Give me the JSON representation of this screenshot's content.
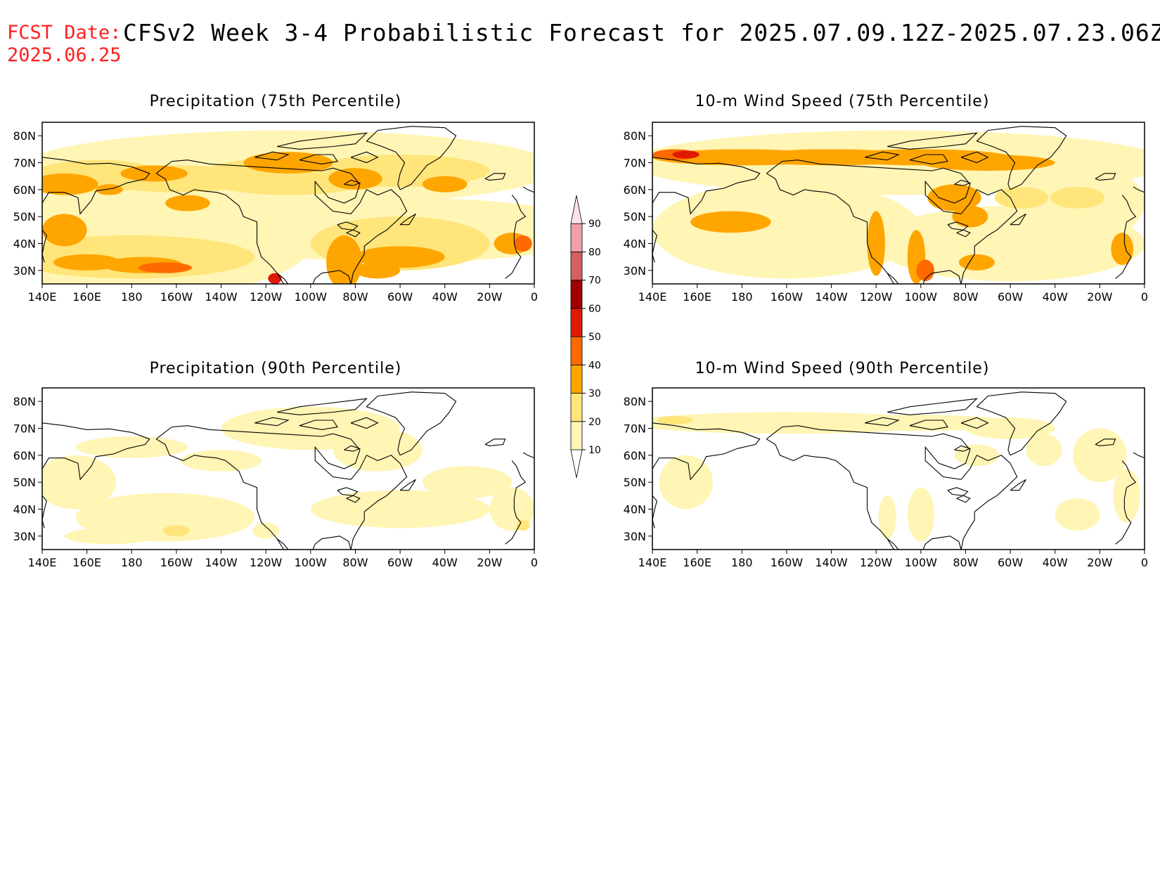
{
  "header": {
    "fcst_label": "FCST Date:",
    "fcst_date": "2025.06.25",
    "title": "CFSv2 Week 3-4 Probabilistic Forecast for 2025.07.09.12Z-2025.07.23.06Z"
  },
  "panels": [
    {
      "title": "Precipitation (75th Percentile)",
      "variable": "precipitation",
      "percentile": 75
    },
    {
      "title": "10-m Wind Speed (75th Percentile)",
      "variable": "wind_speed_10m",
      "percentile": 75
    },
    {
      "title": "Precipitation (90th Percentile)",
      "variable": "precipitation",
      "percentile": 90
    },
    {
      "title": "10-m Wind Speed (90th Percentile)",
      "variable": "wind_speed_10m",
      "percentile": 90
    }
  ],
  "map_axes": {
    "lon_labels": [
      "140E",
      "160E",
      "180",
      "160W",
      "140W",
      "120W",
      "100W",
      "80W",
      "60W",
      "40W",
      "20W",
      "0"
    ],
    "lat_labels": [
      "80N",
      "70N",
      "60N",
      "50N",
      "40N",
      "30N"
    ]
  },
  "colorbar": {
    "levels": [
      "10",
      "20",
      "30",
      "40",
      "50",
      "60",
      "70",
      "80",
      "90"
    ],
    "colors": [
      "#fff5b5",
      "#ffe57a",
      "#ffa500",
      "#ff6a00",
      "#e01a00",
      "#a00000",
      "#d45f5f",
      "#f0a0a8",
      "#fde3e6"
    ]
  }
}
